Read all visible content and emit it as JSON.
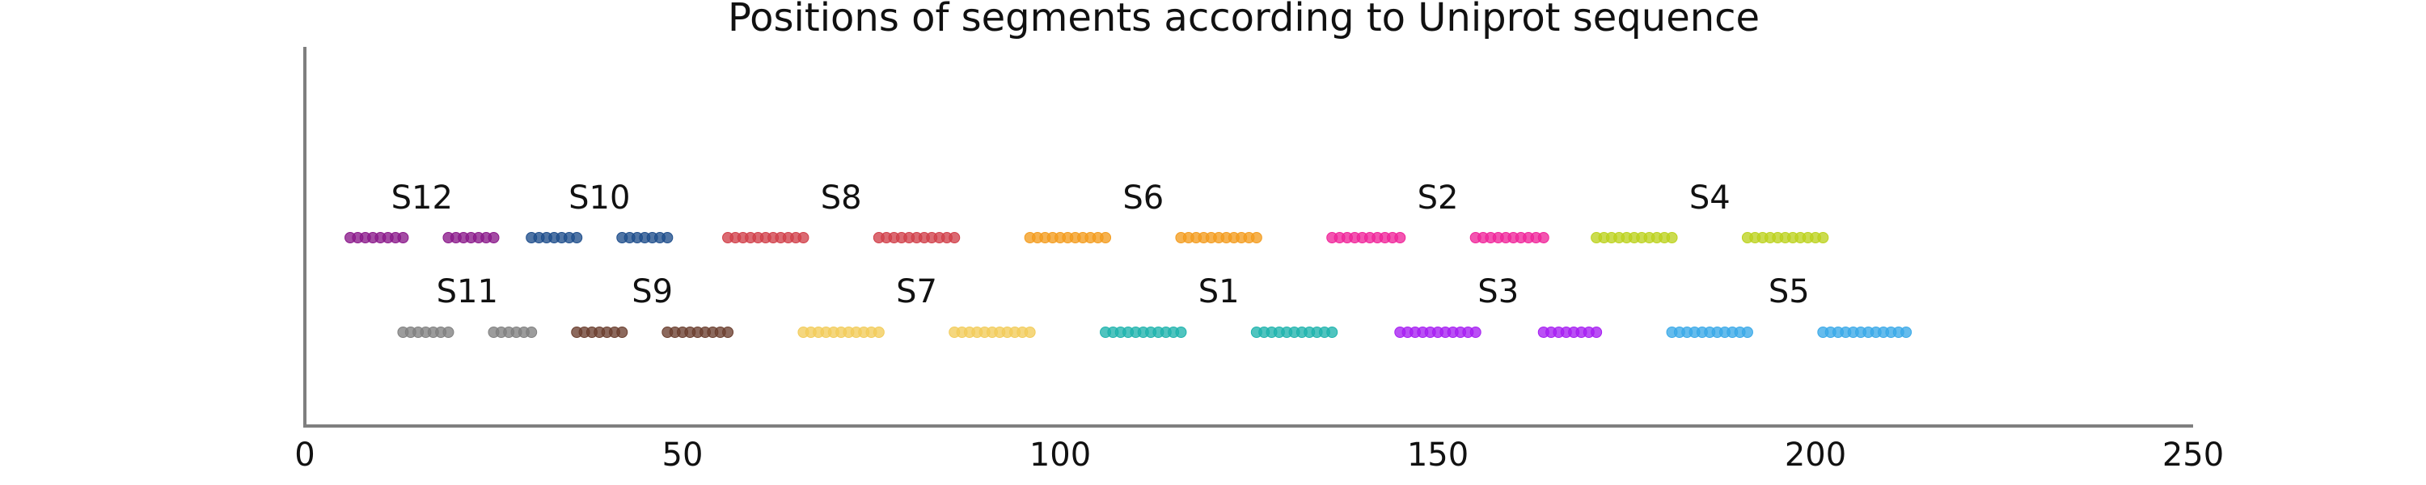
{
  "chart_data": {
    "type": "scatter",
    "title": "Positions of segments according to Uniprot sequence",
    "xlabel": "",
    "ylabel": "",
    "xlim": [
      0,
      250
    ],
    "xticks": [
      0,
      50,
      100,
      150,
      200,
      250
    ],
    "grid": false,
    "legend": "none",
    "rows": [
      "upper",
      "lower"
    ],
    "segments": [
      {
        "name": "S12",
        "row": "upper",
        "color": "#8b1a8b",
        "ranges": [
          [
            6,
            13
          ],
          [
            19,
            25
          ]
        ]
      },
      {
        "name": "S10",
        "row": "upper",
        "color": "#1f4e8c",
        "ranges": [
          [
            30,
            36
          ],
          [
            42,
            48
          ]
        ]
      },
      {
        "name": "S8",
        "row": "upper",
        "color": "#d1404a",
        "ranges": [
          [
            56,
            66
          ],
          [
            76,
            86
          ]
        ]
      },
      {
        "name": "S6",
        "row": "upper",
        "color": "#f39c1f",
        "ranges": [
          [
            96,
            106
          ],
          [
            116,
            126
          ]
        ]
      },
      {
        "name": "S2",
        "row": "upper",
        "color": "#f0259a",
        "ranges": [
          [
            136,
            145
          ],
          [
            155,
            164
          ]
        ]
      },
      {
        "name": "S4",
        "row": "upper",
        "color": "#bcd21f",
        "ranges": [
          [
            171,
            181
          ],
          [
            191,
            201
          ]
        ]
      },
      {
        "name": "S11",
        "row": "lower",
        "color": "#808080",
        "ranges": [
          [
            13,
            19
          ],
          [
            25,
            30
          ]
        ]
      },
      {
        "name": "S9",
        "row": "lower",
        "color": "#6b3f2f",
        "ranges": [
          [
            36,
            42
          ],
          [
            48,
            56
          ]
        ]
      },
      {
        "name": "S7",
        "row": "lower",
        "color": "#f2cc5a",
        "ranges": [
          [
            66,
            76
          ],
          [
            86,
            96
          ]
        ]
      },
      {
        "name": "S1",
        "row": "lower",
        "color": "#1fb3ad",
        "ranges": [
          [
            106,
            116
          ],
          [
            126,
            136
          ]
        ]
      },
      {
        "name": "S3",
        "row": "lower",
        "color": "#a61ff2",
        "ranges": [
          [
            145,
            155
          ],
          [
            164,
            171
          ]
        ]
      },
      {
        "name": "S5",
        "row": "lower",
        "color": "#3aa9e8",
        "ranges": [
          [
            181,
            191
          ],
          [
            201,
            212
          ]
        ]
      }
    ]
  }
}
